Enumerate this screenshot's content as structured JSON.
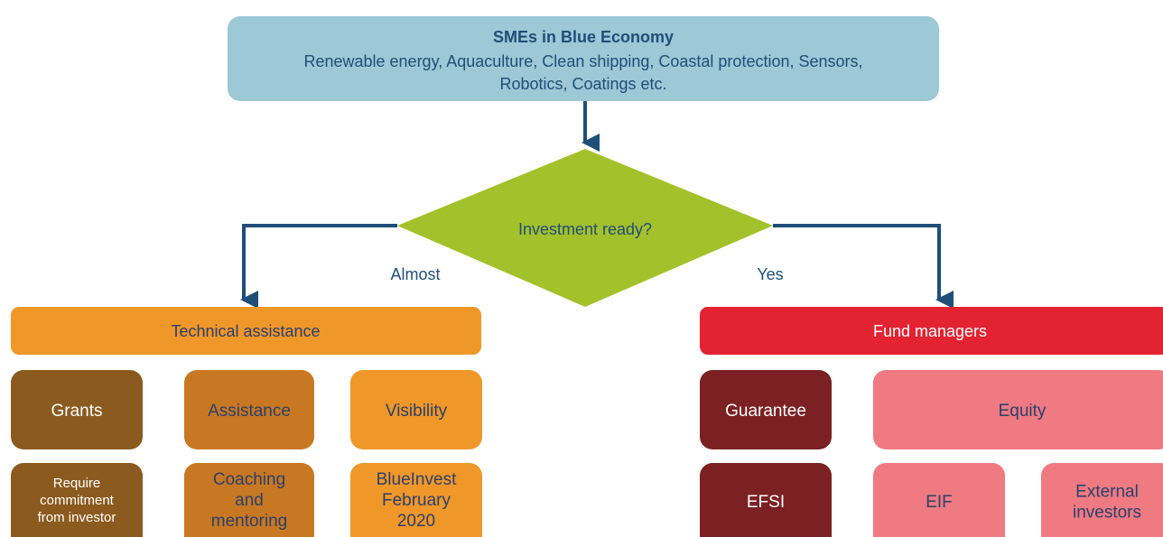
{
  "top": {
    "title": "SMEs in Blue Economy",
    "lines": [
      "Renewable energy, Aquaculture, Clean shipping, Coastal protection, Sensors,",
      "Robotics, Coatings etc."
    ]
  },
  "decision": {
    "label": "Investment ready?",
    "left_branch": "Almost",
    "right_branch": "Yes"
  },
  "left": {
    "header": "Technical assistance",
    "row1": [
      "Grants",
      "Assistance",
      "Visibility"
    ],
    "row2": [
      [
        "Require",
        "commitment",
        "from investor"
      ],
      [
        "Coaching",
        "and",
        "mentoring"
      ],
      [
        "BlueInvest",
        "February",
        "2020"
      ]
    ]
  },
  "right": {
    "header": "Fund managers",
    "row1": [
      "Guarantee",
      "Equity"
    ],
    "row2": [
      [
        "EFSI"
      ],
      [
        "EIF"
      ],
      [
        "External",
        "investors"
      ]
    ]
  }
}
